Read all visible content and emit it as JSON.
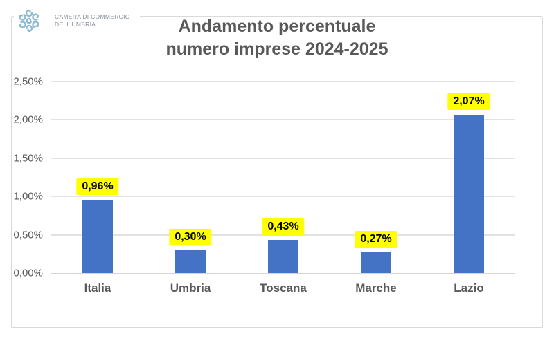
{
  "logo": {
    "line1": "CAMERA DI COMMERCIO",
    "line2": "DELL'UMBRIA",
    "icon": "camera-commercio-rosette-icon",
    "icon_color": "#8cbad3",
    "text_color": "#8a9199"
  },
  "chart_data": {
    "type": "bar",
    "title": "Andamento percentuale numero imprese 2024-2025",
    "title_lines": [
      "Andamento percentuale",
      "numero imprese 2024-2025"
    ],
    "categories": [
      "Italia",
      "Umbria",
      "Toscana",
      "Marche",
      "Lazio"
    ],
    "values": [
      0.96,
      0.3,
      0.43,
      0.27,
      2.07
    ],
    "data_labels": [
      "0,96%",
      "0,30%",
      "0,43%",
      "0,27%",
      "2,07%"
    ],
    "y_ticks": [
      {
        "value": 0.0,
        "label": "0,00%"
      },
      {
        "value": 0.5,
        "label": "0,50%"
      },
      {
        "value": 1.0,
        "label": "1,00%"
      },
      {
        "value": 1.5,
        "label": "1,50%"
      },
      {
        "value": 2.0,
        "label": "2,00%"
      },
      {
        "value": 2.5,
        "label": "2,50%"
      }
    ],
    "ylim": [
      0,
      2.5
    ],
    "xlabel": "",
    "ylabel": "",
    "grid": true,
    "legend": "none",
    "bar_color": "#4472c4",
    "label_bg": "#ffff00",
    "label_text_color": "#000000",
    "title_color": "#595959",
    "axis_text_color": "#595959",
    "gridline_color": "#e2e2e2"
  }
}
